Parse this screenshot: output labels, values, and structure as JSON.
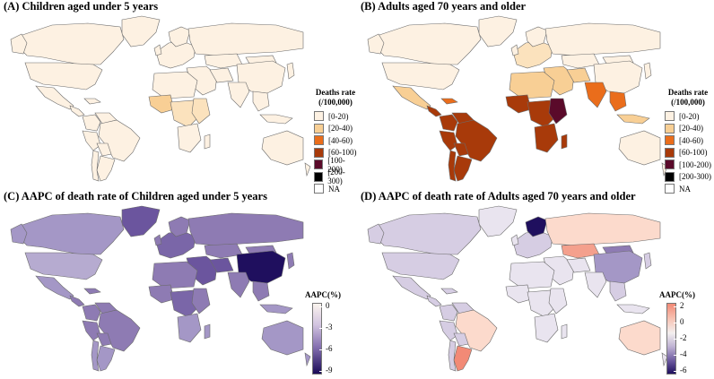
{
  "panels": {
    "a": {
      "title": "(A) Children aged under 5 years"
    },
    "b": {
      "title": "(B) Adults aged 70 years and older"
    },
    "c": {
      "title": "(C) AAPC of death rate of Children aged under 5 years"
    },
    "d": {
      "title": "(D) AAPC of death rate of Adults aged 70 years and older"
    }
  },
  "legend_deaths": {
    "title_line1": "Deaths rate",
    "title_line2": "(/100,000)",
    "items": [
      {
        "label": "[0-20)",
        "color": "#fdf1e2"
      },
      {
        "label": "[20-40)",
        "color": "#f8cf95"
      },
      {
        "label": "[40-60)",
        "color": "#ea6d1b"
      },
      {
        "label": "[60-100)",
        "color": "#a83a0a"
      },
      {
        "label": "[100-200)",
        "color": "#5a0a2a"
      },
      {
        "label": "[200-300)",
        "color": "#000000"
      },
      {
        "label": "NA",
        "color": "#ffffff"
      }
    ]
  },
  "colorbar_c": {
    "title": "AAPC(%)",
    "ticks": [
      "0",
      "-3",
      "-6",
      "-9"
    ]
  },
  "colorbar_d": {
    "title": "AAPC(%)",
    "ticks": [
      "2",
      "0",
      "-2",
      "-4",
      "-6"
    ]
  },
  "colors": {
    "land_light": "#fdf1e2",
    "purple_light": "#d6cde3",
    "purple_mid": "#8e7bb3",
    "purple_dark": "#1f0f5e",
    "salmon": "#f4a08d",
    "salmon_light": "#fcdacc",
    "outline": "#6b6b6b"
  }
}
